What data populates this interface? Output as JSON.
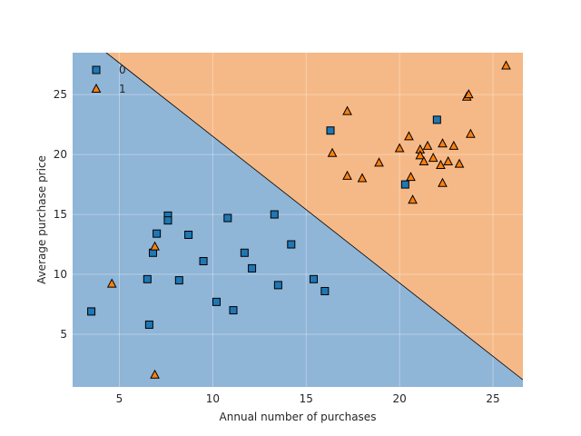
{
  "chart_data": {
    "type": "scatter",
    "title": "",
    "xlabel": "Annual number of purchases",
    "ylabel": "Average purchase price",
    "xlim": [
      2.5,
      26.6
    ],
    "ylim": [
      0.6,
      28.5
    ],
    "xticks": [
      5,
      10,
      15,
      20,
      25
    ],
    "yticks": [
      5,
      10,
      15,
      20,
      25
    ],
    "grid": true,
    "legend_position": "top-left",
    "decision_boundary": {
      "points": [
        [
          4.3,
          28.5
        ],
        [
          26.6,
          1.2
        ]
      ],
      "region_colors": {
        "0": "#8fb5d7",
        "1": "#f5b987"
      }
    },
    "series": [
      {
        "name": "0",
        "marker": "square",
        "color": "#1f77b4",
        "points": [
          [
            3.5,
            6.9
          ],
          [
            6.5,
            9.6
          ],
          [
            6.6,
            5.8
          ],
          [
            6.8,
            11.8
          ],
          [
            7.0,
            13.4
          ],
          [
            7.6,
            14.9
          ],
          [
            7.6,
            14.5
          ],
          [
            8.2,
            9.5
          ],
          [
            8.7,
            13.3
          ],
          [
            9.5,
            11.1
          ],
          [
            10.2,
            7.7
          ],
          [
            10.8,
            14.7
          ],
          [
            11.1,
            7.0
          ],
          [
            11.7,
            11.8
          ],
          [
            12.1,
            10.5
          ],
          [
            13.3,
            15.0
          ],
          [
            13.5,
            9.1
          ],
          [
            14.2,
            12.5
          ],
          [
            15.4,
            9.6
          ],
          [
            16.0,
            8.6
          ],
          [
            16.3,
            22.0
          ],
          [
            20.3,
            17.5
          ],
          [
            22.0,
            22.9
          ]
        ]
      },
      {
        "name": "1",
        "marker": "triangle",
        "color": "#ff7f0e",
        "points": [
          [
            4.6,
            9.2
          ],
          [
            6.9,
            12.3
          ],
          [
            6.9,
            1.6
          ],
          [
            16.4,
            20.1
          ],
          [
            17.2,
            23.6
          ],
          [
            17.2,
            18.2
          ],
          [
            18.0,
            18.0
          ],
          [
            18.9,
            19.3
          ],
          [
            20.0,
            20.5
          ],
          [
            20.5,
            21.5
          ],
          [
            20.6,
            18.1
          ],
          [
            20.7,
            16.2
          ],
          [
            21.1,
            20.4
          ],
          [
            21.1,
            19.9
          ],
          [
            21.3,
            19.4
          ],
          [
            21.5,
            20.7
          ],
          [
            21.8,
            19.7
          ],
          [
            22.2,
            19.1
          ],
          [
            22.3,
            20.9
          ],
          [
            22.3,
            17.6
          ],
          [
            22.6,
            19.4
          ],
          [
            22.9,
            20.7
          ],
          [
            23.2,
            19.2
          ],
          [
            23.6,
            24.8
          ],
          [
            23.7,
            25.0
          ],
          [
            23.8,
            21.7
          ],
          [
            25.7,
            27.4
          ]
        ]
      }
    ]
  }
}
